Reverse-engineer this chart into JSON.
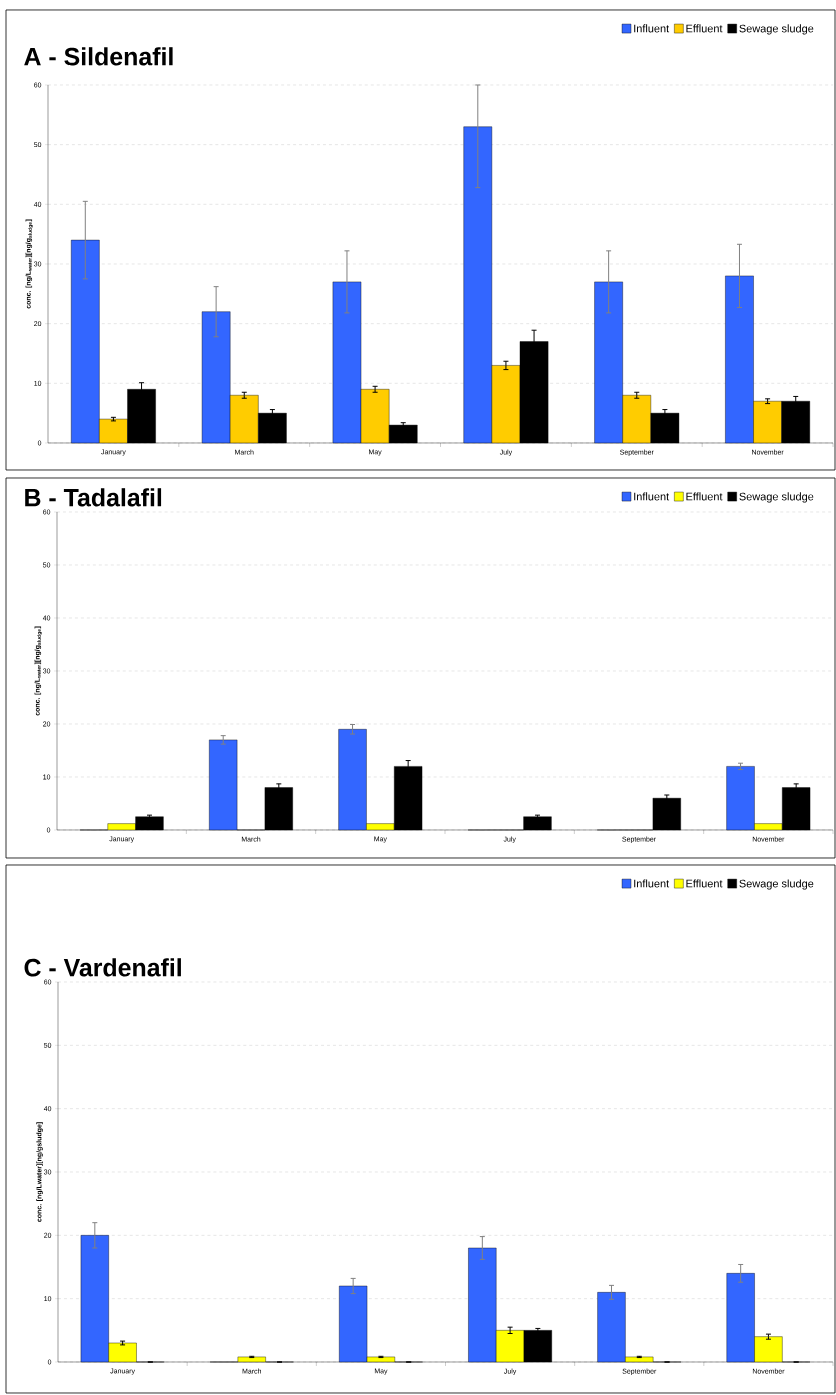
{
  "chart_data": [
    {
      "type": "bar",
      "title": "A - Sildenafil",
      "ylabel": "conc. [ng/L$_{water}$][ng/g$_{sludge}$]",
      "categories": [
        "January",
        "March",
        "May",
        "July",
        "September",
        "November"
      ],
      "series": [
        {
          "name": "Influent",
          "color": "#3366ff",
          "values": [
            34,
            22,
            27,
            53,
            27,
            28
          ],
          "errors": [
            6.5,
            4.2,
            5.2,
            [
              42.8,
              60
            ],
            5.2,
            5.3
          ]
        },
        {
          "name": "Effluent",
          "color": "#ffcc00",
          "values": [
            4,
            8,
            9,
            13,
            8,
            7
          ],
          "errors": [
            0.3,
            0.5,
            0.5,
            0.7,
            0.5,
            0.4
          ]
        },
        {
          "name": "Sewage sludge",
          "color": "#000000",
          "values": [
            9,
            5,
            3,
            17,
            5,
            7
          ],
          "errors": [
            1.1,
            0.6,
            0.4,
            1.9,
            0.6,
            0.8
          ]
        }
      ],
      "ylim": [
        0,
        60
      ],
      "yticks": [
        0,
        10,
        20,
        30,
        40,
        50,
        60
      ],
      "grid": "y",
      "legend": "top right"
    },
    {
      "type": "bar",
      "title": "B - Tadalafil",
      "ylabel": "conc. [ng/L$_{water}$][ng/g$_{sludge}$]",
      "categories": [
        "January",
        "March",
        "May",
        "July",
        "September",
        "November"
      ],
      "series": [
        {
          "name": "Influent",
          "color": "#3366ff",
          "values": [
            0,
            17,
            19,
            0,
            0,
            12
          ],
          "errors": [
            null,
            0.8,
            0.9,
            null,
            null,
            0.6
          ]
        },
        {
          "name": "Effluent",
          "color": "#ffff00",
          "values": [
            1.2,
            0,
            1.2,
            0,
            0,
            1.2
          ]
        },
        {
          "name": "Sewage sludge",
          "color": "#000000",
          "values": [
            2.5,
            8,
            12,
            2.5,
            6,
            8
          ],
          "errors": [
            0.3,
            0.7,
            1.1,
            0.3,
            0.6,
            0.7
          ]
        }
      ],
      "ylim": [
        0,
        60
      ],
      "yticks": [
        0,
        10,
        20,
        30,
        40,
        50,
        60
      ],
      "grid": "y",
      "legend": "top right"
    },
    {
      "type": "bar",
      "title": "C - Vardenafil",
      "ylabel": "conc. [ng/Lwater][ng/gsludge]",
      "categories": [
        "January",
        "March",
        "May",
        "July",
        "September",
        "November"
      ],
      "series": [
        {
          "name": "Influent",
          "color": "#3366ff",
          "values": [
            20,
            0,
            12,
            18,
            11,
            14
          ],
          "errors": [
            2,
            null,
            1.2,
            1.8,
            1.1,
            1.4
          ]
        },
        {
          "name": "Effluent",
          "color": "#ffff00",
          "values": [
            3,
            0.8,
            0.8,
            5,
            0.8,
            4
          ],
          "errors": [
            0.3,
            0.1,
            0.1,
            0.5,
            0.1,
            0.4
          ]
        },
        {
          "name": "Sewage sludge",
          "color": "#000000",
          "values": [
            0,
            0,
            0,
            5,
            0,
            0
          ],
          "errors": [
            null,
            null,
            null,
            0.3,
            null,
            null
          ]
        }
      ],
      "ylim": [
        0,
        60
      ],
      "yticks": [
        0,
        10,
        20,
        30,
        40,
        50,
        60
      ],
      "grid": "y",
      "legend": "top right"
    }
  ]
}
